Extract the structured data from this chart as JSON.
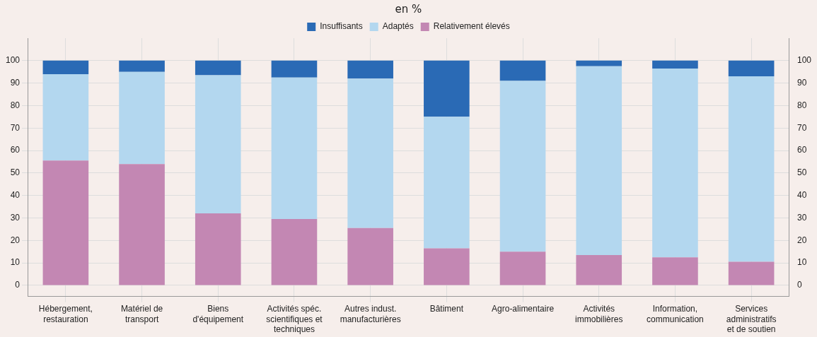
{
  "chart_data": {
    "type": "bar",
    "subtitle": "en %",
    "stacked": true,
    "grid": true,
    "legend": "top",
    "categories": [
      "Hébergement, restauration",
      "Matériel de transport",
      "Biens d'équipement",
      "Activités spéc. scientifiques et techniques",
      "Autres indust. manufacturières",
      "Bâtiment",
      "Agro-alimentaire",
      "Activités immobilières",
      "Information, communication",
      "Services administratifs et de soutien"
    ],
    "series": [
      {
        "name": "Relativement élevés",
        "color": "#c387b3",
        "values": [
          55.5,
          54,
          32,
          29.5,
          25.5,
          16.5,
          15,
          13.5,
          12.5,
          10.5
        ]
      },
      {
        "name": "Adaptés",
        "color": "#b3d7ef",
        "values": [
          38.5,
          41,
          61.5,
          63,
          66.5,
          58.5,
          76,
          84,
          84,
          82.5
        ]
      },
      {
        "name": "Insuffisants",
        "color": "#2a6ab5",
        "values": [
          6,
          5,
          6.5,
          7.5,
          8,
          25,
          9,
          2.5,
          3.5,
          7
        ]
      }
    ],
    "ylim": [
      -5,
      110
    ],
    "yticks": [
      0,
      10,
      20,
      30,
      40,
      50,
      60,
      70,
      80,
      90,
      100
    ],
    "y2lim": [
      -5,
      110
    ],
    "y2ticks": [
      0,
      10,
      20,
      30,
      40,
      50,
      60,
      70,
      80,
      90,
      100
    ]
  }
}
